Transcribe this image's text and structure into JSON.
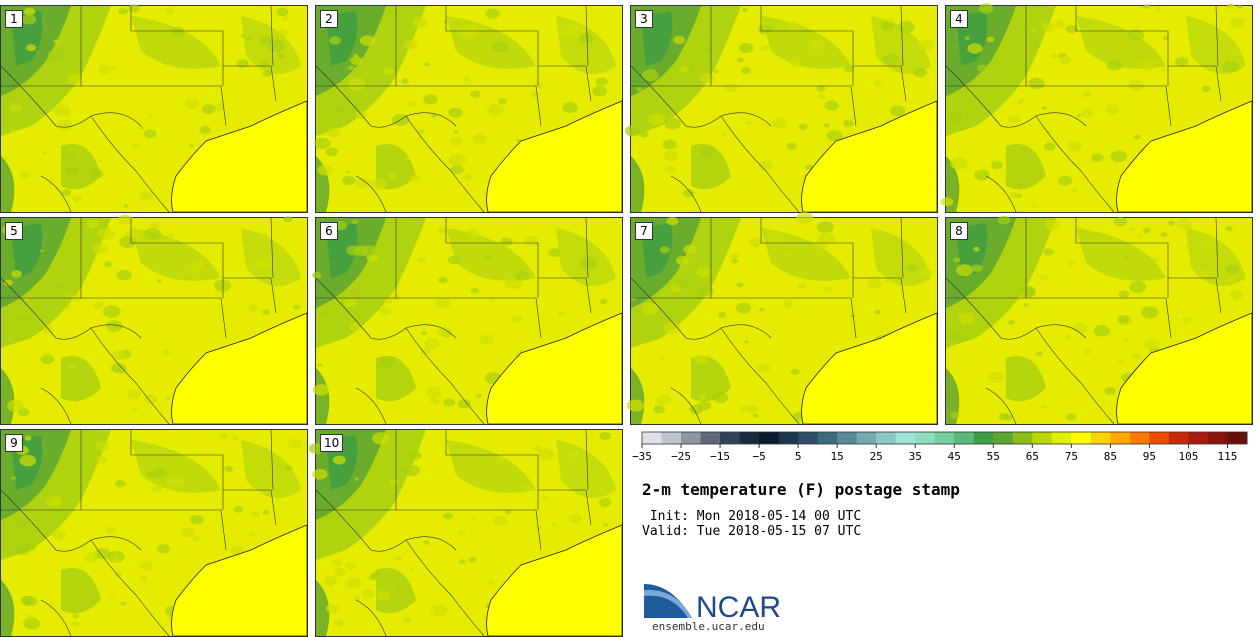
{
  "panels": [
    {
      "label": "1"
    },
    {
      "label": "2"
    },
    {
      "label": "3"
    },
    {
      "label": "4"
    },
    {
      "label": "5"
    },
    {
      "label": "6"
    },
    {
      "label": "7"
    },
    {
      "label": "8"
    },
    {
      "label": "9"
    },
    {
      "label": "10"
    }
  ],
  "chart_data": {
    "type": "heatmap",
    "title": "2-m temperature (F) postage stamp",
    "variable": "2-m temperature",
    "units": "F",
    "members": [
      "1",
      "2",
      "3",
      "4",
      "5",
      "6",
      "7",
      "8",
      "9",
      "10"
    ],
    "colorbar": {
      "min": -35,
      "max": 120,
      "step": 5,
      "tick_values": [
        -35,
        -25,
        -15,
        -5,
        5,
        15,
        25,
        35,
        45,
        55,
        65,
        75,
        85,
        95,
        105,
        115
      ],
      "tick_labels": [
        "−35",
        "−25",
        "−15",
        "−5",
        "5",
        "15",
        "25",
        "35",
        "45",
        "55",
        "65",
        "75",
        "85",
        "95",
        "105",
        "115"
      ],
      "colors": [
        "#dde1e8",
        "#bfc3cc",
        "#8f96a3",
        "#5f6878",
        "#34435a",
        "#1c2a40",
        "#0c1a30",
        "#1e3550",
        "#2e4d68",
        "#3e6a80",
        "#5a8c98",
        "#75aaae",
        "#8ec8c4",
        "#a2e3d6",
        "#8fdcc0",
        "#76cc9a",
        "#5cb878",
        "#3e9d44",
        "#5ea430",
        "#8cbd1a",
        "#b8d800",
        "#e0ee00",
        "#ffff00",
        "#ffd200",
        "#ffa800",
        "#ff7a00",
        "#ee4a00",
        "#c82a0a",
        "#a81c10",
        "#861408",
        "#681008"
      ]
    }
  },
  "info": {
    "init": " Init: Mon 2018-05-14 00 UTC",
    "valid": "Valid: Tue 2018-05-15 07 UTC"
  },
  "logo": {
    "text": "NCAR",
    "site": "ensemble.ucar.edu"
  },
  "colors": {
    "gulf": "#ffff00",
    "land_base": "#e6ec00",
    "land_mid": "#a8d010",
    "land_cool": "#5ea430",
    "highlands": "#3e9d44"
  }
}
